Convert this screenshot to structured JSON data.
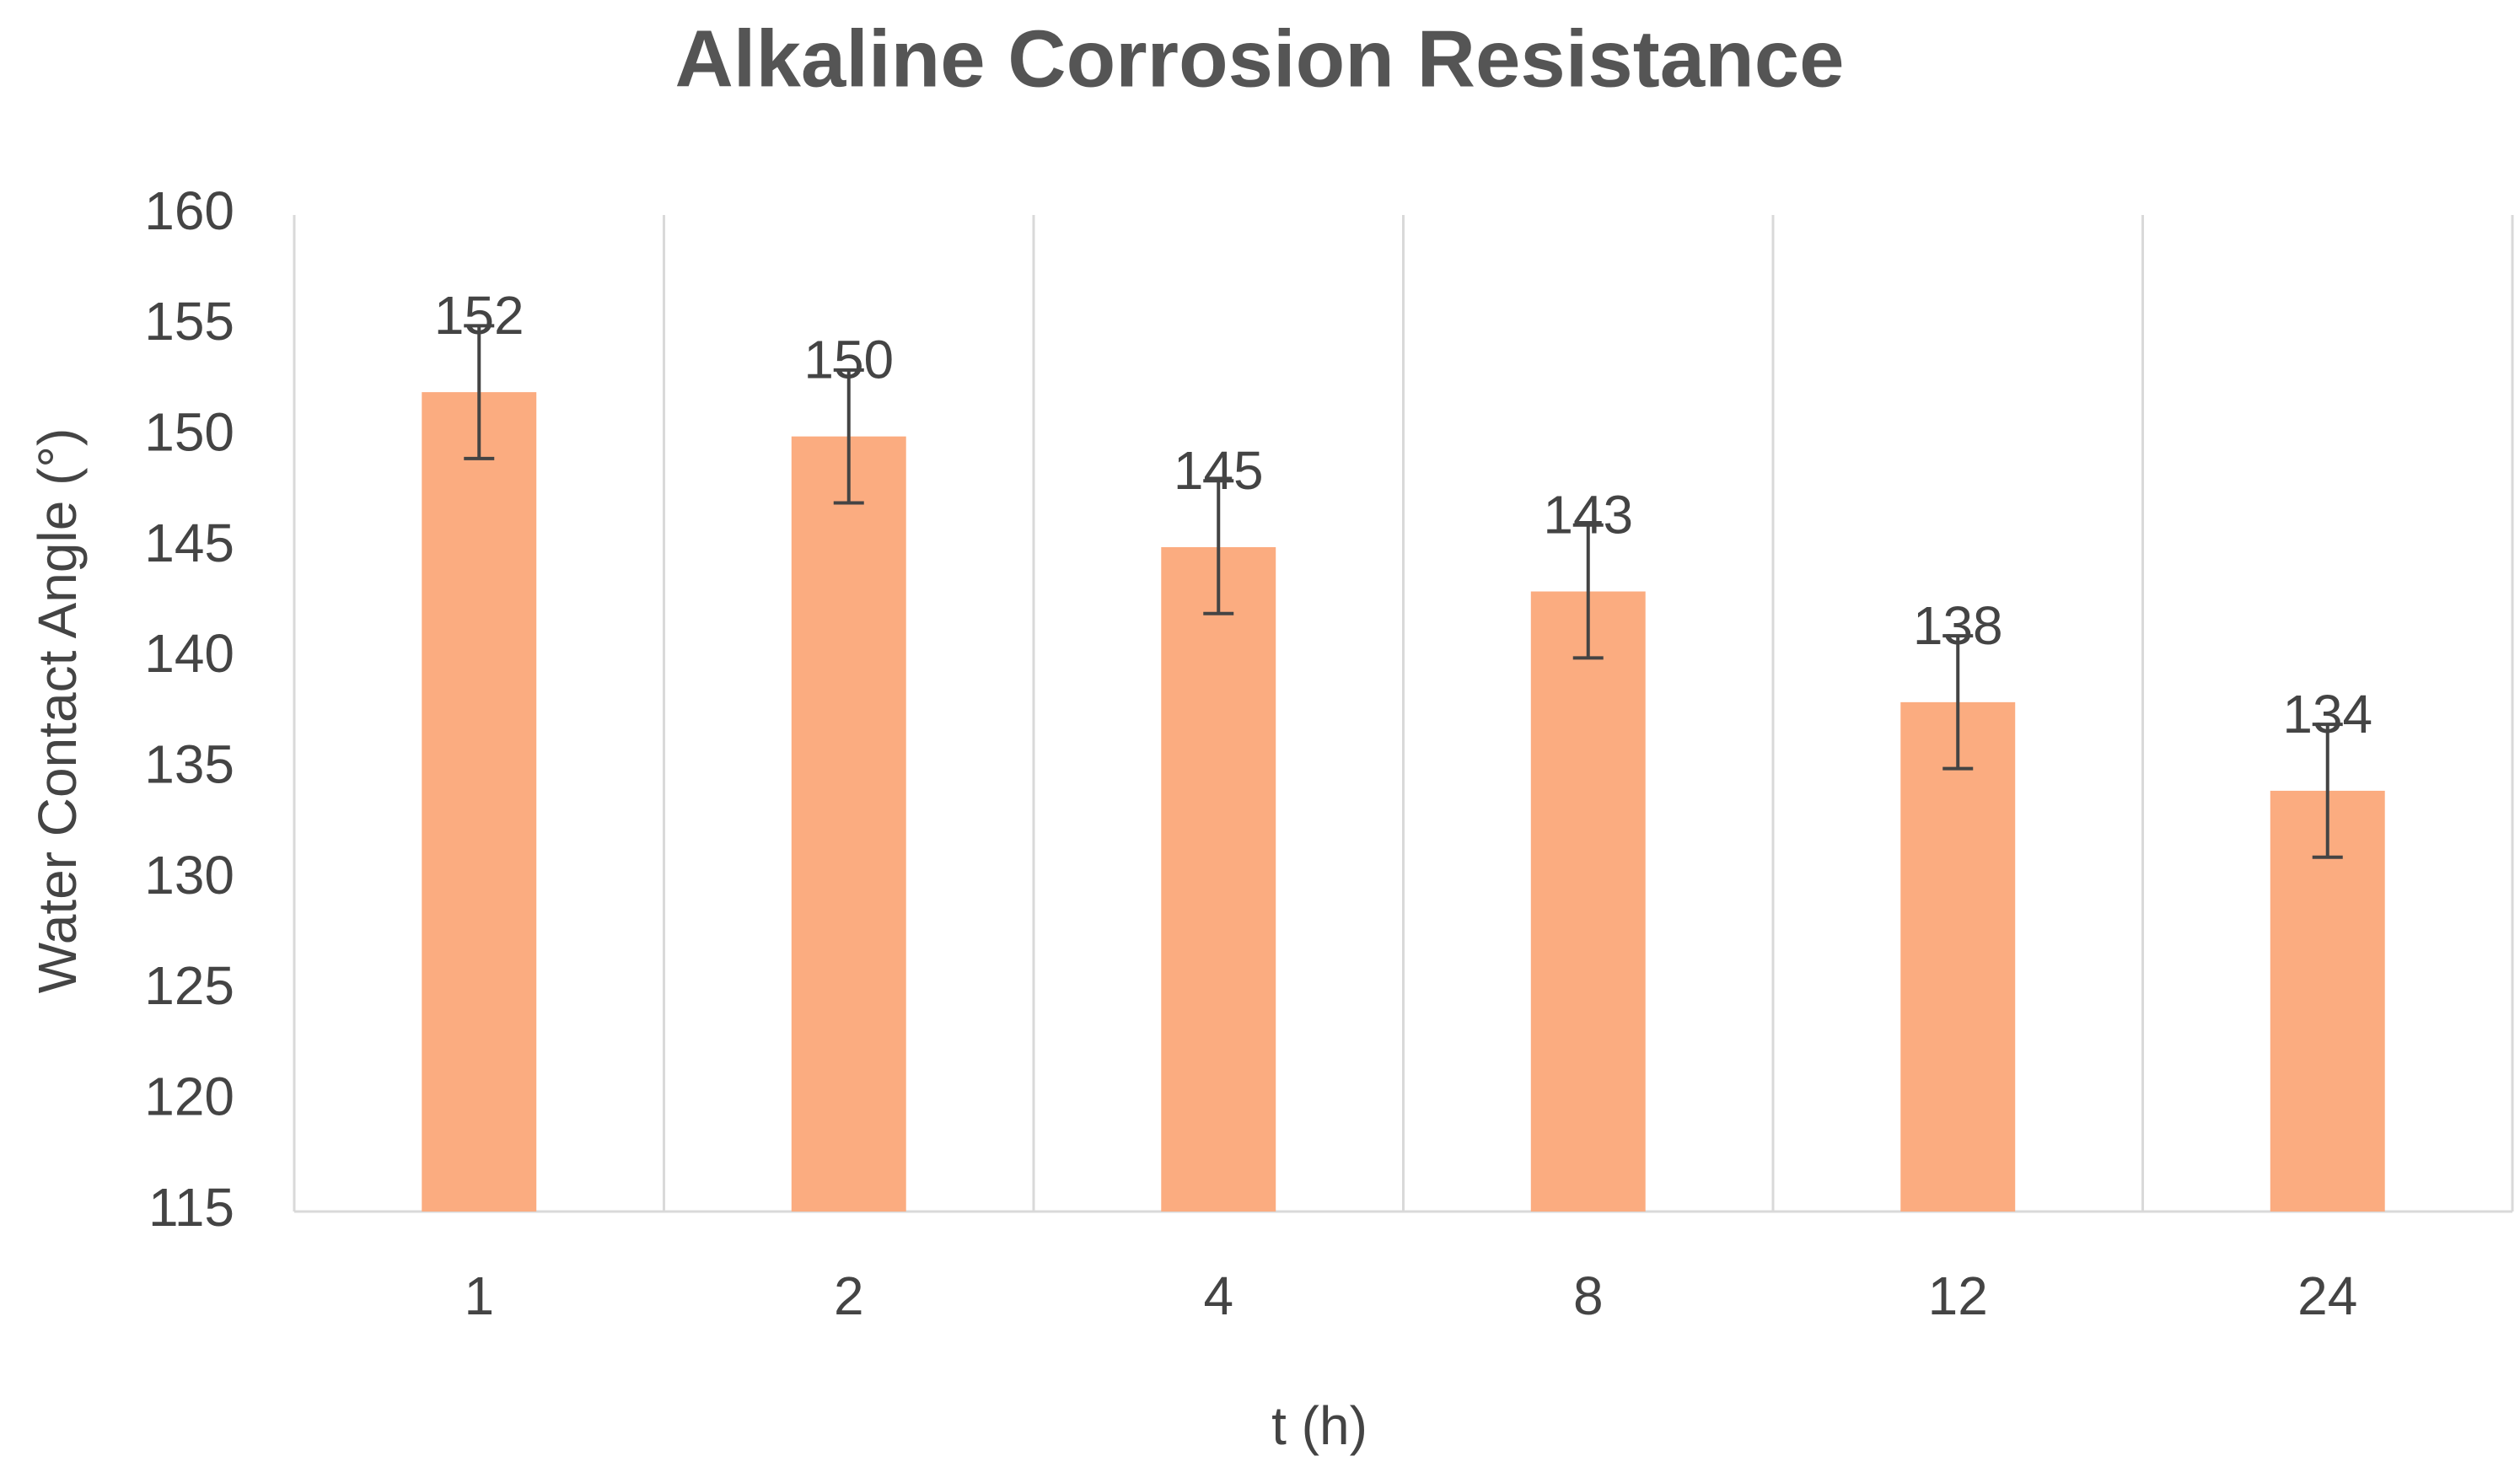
{
  "chart_data": {
    "type": "bar",
    "title": "Alkaline Corrosion Resistance",
    "x_label": "t (h)",
    "y_label": "Water Contact Angle (°)",
    "categories": [
      "1",
      "2",
      "4",
      "8",
      "12",
      "24"
    ],
    "values": [
      152,
      150,
      145,
      143,
      138,
      134
    ],
    "errors": [
      3,
      3,
      3,
      3,
      3,
      3
    ],
    "color": "#fbac80",
    "ylim": [
      115,
      160
    ],
    "yticks": [
      115,
      120,
      125,
      130,
      135,
      140,
      145,
      150,
      155,
      160
    ]
  }
}
